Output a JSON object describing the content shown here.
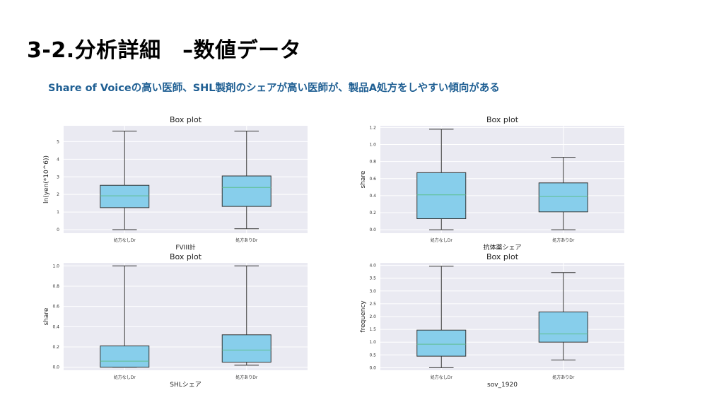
{
  "header": {
    "title": "3-2.分析詳細　–数値データ",
    "subtitle": "Share of Voiceの高い医師、SHL製剤のシェアが高い医師が、製品A処方をしやすい傾向がある"
  },
  "colors": {
    "box": "#87ceeb",
    "median": "#5fbf8f",
    "panel": "#eaeaf2",
    "grid": "#ffffff",
    "line": "#333333"
  },
  "chart_data": [
    {
      "type": "box",
      "title": "Box plot",
      "xlabel": "FVIII計",
      "ylabel": "ln(yen(*10^6))",
      "categories": [
        "処方なしDr",
        "処方ありDr"
      ],
      "ylim": [
        -0.2,
        5.9
      ],
      "yticks": [
        0,
        1,
        2,
        3,
        4,
        5
      ],
      "yticklabels": [
        "0",
        "1",
        "2",
        "3",
        "4",
        "5"
      ],
      "boxes": [
        {
          "min": 0.0,
          "q1": 1.25,
          "median": 1.92,
          "q3": 2.52,
          "max": 5.6
        },
        {
          "min": 0.05,
          "q1": 1.32,
          "median": 2.4,
          "q3": 3.05,
          "max": 5.6
        }
      ]
    },
    {
      "type": "box",
      "title": "Box plot",
      "xlabel": "抗体薬シェア",
      "ylabel": "share",
      "categories": [
        "処方なしDr",
        "処方ありDr"
      ],
      "ylim": [
        -0.04,
        1.22
      ],
      "yticks": [
        0,
        0.2,
        0.4,
        0.6,
        0.8,
        1.0,
        1.2
      ],
      "yticklabels": [
        "0.0",
        "0.2",
        "0.4",
        "0.6",
        "0.8",
        "1.0",
        "1.2"
      ],
      "boxes": [
        {
          "min": 0.0,
          "q1": 0.13,
          "median": 0.41,
          "q3": 0.67,
          "max": 1.18
        },
        {
          "min": 0.0,
          "q1": 0.21,
          "median": 0.39,
          "q3": 0.55,
          "max": 0.85
        }
      ]
    },
    {
      "type": "box",
      "title": "Box plot",
      "xlabel": "SHLシェア",
      "ylabel": "share",
      "categories": [
        "処方なしDr",
        "処方ありDr"
      ],
      "ylim": [
        -0.03,
        1.03
      ],
      "yticks": [
        0,
        0.2,
        0.4,
        0.6,
        0.8,
        1.0
      ],
      "yticklabels": [
        "0.0",
        "0.2",
        "0.4",
        "0.6",
        "0.8",
        "1.0"
      ],
      "boxes": [
        {
          "min": 0.0,
          "q1": 0.0,
          "median": 0.06,
          "q3": 0.21,
          "max": 1.0
        },
        {
          "min": 0.02,
          "q1": 0.05,
          "median": 0.17,
          "q3": 0.32,
          "max": 1.0
        }
      ]
    },
    {
      "type": "box",
      "title": "Box plot",
      "xlabel": "sov_1920",
      "ylabel": "frequency",
      "categories": [
        "処方なしDr",
        "処方ありDr"
      ],
      "ylim": [
        -0.1,
        4.1
      ],
      "yticks": [
        0,
        0.5,
        1.0,
        1.5,
        2.0,
        2.5,
        3.0,
        3.5,
        4.0
      ],
      "yticklabels": [
        "0.0",
        "0.5",
        "1.0",
        "1.5",
        "2.0",
        "2.5",
        "3.0",
        "3.5",
        "4.0"
      ],
      "boxes": [
        {
          "min": 0.0,
          "q1": 0.45,
          "median": 0.92,
          "q3": 1.47,
          "max": 3.97
        },
        {
          "min": 0.3,
          "q1": 1.0,
          "median": 1.32,
          "q3": 2.18,
          "max": 3.72
        }
      ]
    }
  ]
}
